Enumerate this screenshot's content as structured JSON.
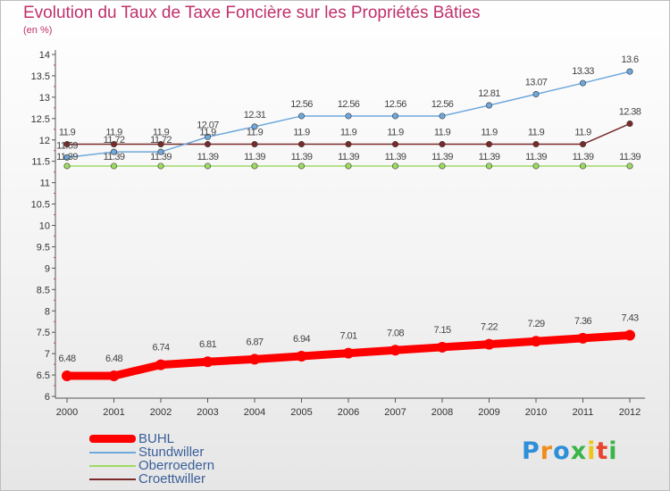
{
  "header": {
    "title": "Evolution du Taux de Taxe Foncière sur les Propriétés Bâties",
    "unit": "(en %)"
  },
  "logo": {
    "text": "Proxiti"
  },
  "chart_data": {
    "type": "line",
    "title": "Evolution du Taux de Taxe Foncière sur les Propriétés Bâties",
    "ylabel": "(en %)",
    "xlabel": "",
    "ylim": [
      6,
      14
    ],
    "yticks": [
      "6",
      "6.5",
      "7",
      "7.5",
      "8",
      "8.5",
      "9",
      "9.5",
      "10",
      "10.5",
      "11",
      "11.5",
      "12",
      "12.5",
      "13",
      "13.5",
      "14"
    ],
    "ytick_values": [
      6,
      6.5,
      7,
      7.5,
      8,
      8.5,
      9,
      9.5,
      10,
      10.5,
      11,
      11.5,
      12,
      12.5,
      13,
      13.5,
      14
    ],
    "grid": false,
    "legend_position": "bottom-left",
    "categories": [
      "2000",
      "2001",
      "2002",
      "2003",
      "2004",
      "2005",
      "2006",
      "2007",
      "2008",
      "2009",
      "2010",
      "2011",
      "2012"
    ],
    "series": [
      {
        "name": "BUHL",
        "color": "#ff0000",
        "values": [
          6.48,
          6.48,
          6.74,
          6.81,
          6.87,
          6.94,
          7.01,
          7.08,
          7.15,
          7.22,
          7.29,
          7.36,
          7.43
        ],
        "labels": [
          "6.48",
          "6.48",
          "6.74",
          "6.81",
          "6.87",
          "6.94",
          "7.01",
          "7.08",
          "7.15",
          "7.22",
          "7.29",
          "7.36",
          "7.43"
        ]
      },
      {
        "name": "Stundwiller",
        "color": "#6fa8dc",
        "values": [
          11.59,
          11.72,
          11.72,
          12.07,
          12.31,
          12.56,
          12.56,
          12.56,
          12.56,
          12.81,
          13.07,
          13.33,
          13.6
        ],
        "labels": [
          "11.59",
          "11.72",
          "11.72",
          "12.07",
          "12.31",
          "12.56",
          "12.56",
          "12.56",
          "12.56",
          "12.81",
          "13.07",
          "13.33",
          "13.6"
        ]
      },
      {
        "name": "Oberroedern",
        "color": "#9ddb63",
        "values": [
          11.39,
          11.39,
          11.39,
          11.39,
          11.39,
          11.39,
          11.39,
          11.39,
          11.39,
          11.39,
          11.39,
          11.39,
          11.39
        ],
        "labels": [
          "11.39",
          "11.39",
          "11.39",
          "11.39",
          "11.39",
          "11.39",
          "11.39",
          "11.39",
          "11.39",
          "11.39",
          "11.39",
          "11.39",
          "11.39"
        ]
      },
      {
        "name": "Croettwiller",
        "color": "#7a2a2a",
        "values": [
          11.9,
          11.9,
          11.9,
          11.9,
          11.9,
          11.9,
          11.9,
          11.9,
          11.9,
          11.9,
          11.9,
          11.9,
          12.38
        ],
        "labels": [
          "11.9",
          "11.9",
          "11.9",
          "11.9",
          "11.9",
          "11.9",
          "11.9",
          "11.9",
          "11.9",
          "11.9",
          "11.9",
          "11.9",
          "12.38"
        ]
      }
    ]
  }
}
